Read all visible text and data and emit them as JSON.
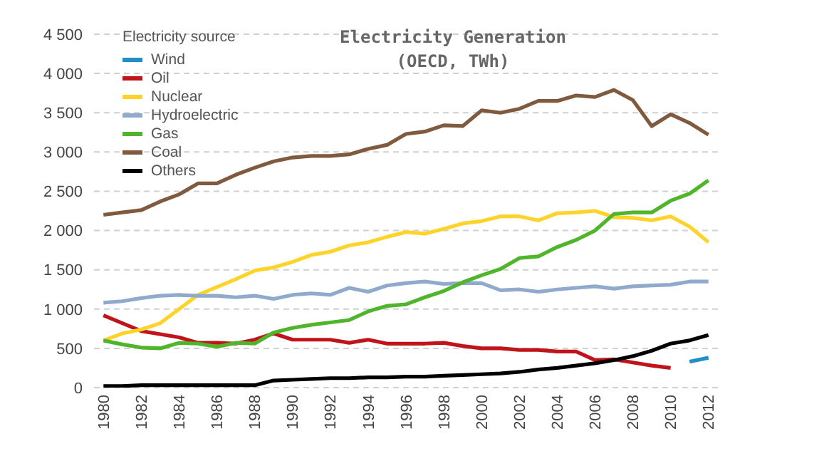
{
  "chart_data": {
    "type": "line",
    "title": "Electricity Generation",
    "subtitle": "(OECD, TWh)",
    "legend_title": "Electricity source",
    "legend": "top left",
    "grid": "y",
    "marker": "none",
    "line_style": "solid",
    "categories": [
      "1980",
      null,
      "1982",
      null,
      "1984",
      null,
      "1986",
      null,
      "1988",
      null,
      "1990",
      null,
      "1992",
      null,
      "1994",
      null,
      "1996",
      null,
      "1998",
      null,
      "2000",
      null,
      "2002",
      null,
      "2004",
      null,
      "2006",
      null,
      "2008",
      null,
      "2010",
      null,
      "2012"
    ],
    "ylim": [
      0,
      4500
    ],
    "yticks": [
      0,
      500,
      {
        "value": 1000,
        "label": "1 000"
      },
      {
        "value": 1500,
        "label": "1 500"
      },
      {
        "value": 2000,
        "label": "2 000"
      },
      {
        "value": 2500,
        "label": "2 500"
      },
      {
        "value": 3000,
        "label": "3 000"
      },
      {
        "value": 3500,
        "label": "3 500"
      },
      {
        "value": 4000,
        "label": "4 000"
      },
      {
        "value": 4500,
        "label": "4 500"
      }
    ],
    "series": [
      {
        "name": "Wind",
        "color": "#1f8fc8",
        "values": [
          null,
          null,
          null,
          null,
          null,
          null,
          null,
          null,
          null,
          null,
          null,
          null,
          null,
          null,
          null,
          null,
          null,
          null,
          null,
          null,
          null,
          null,
          null,
          null,
          null,
          null,
          null,
          null,
          null,
          null,
          null,
          330,
          380
        ]
      },
      {
        "name": "Oil",
        "color": "#c0141a",
        "values": [
          920,
          820,
          720,
          680,
          640,
          570,
          570,
          560,
          610,
          690,
          610,
          610,
          610,
          570,
          610,
          560,
          560,
          560,
          570,
          530,
          500,
          500,
          480,
          480,
          460,
          460,
          350,
          360,
          320,
          280,
          250,
          null,
          null
        ]
      },
      {
        "name": "Nuclear",
        "color": "#ffd42a",
        "values": [
          600,
          690,
          740,
          820,
          1000,
          1180,
          1280,
          1380,
          1490,
          1530,
          1600,
          1690,
          1730,
          1810,
          1850,
          1920,
          1980,
          1960,
          2020,
          2090,
          2120,
          2180,
          2180,
          2130,
          2220,
          2230,
          2250,
          2170,
          2160,
          2130,
          2180,
          2050,
          1850
        ]
      },
      {
        "name": "Hydroelectric",
        "color": "#8faacc",
        "values": [
          1080,
          1100,
          1140,
          1170,
          1180,
          1170,
          1170,
          1150,
          1170,
          1130,
          1180,
          1200,
          1180,
          1270,
          1220,
          1300,
          1330,
          1350,
          1320,
          1330,
          1330,
          1240,
          1250,
          1220,
          1250,
          1270,
          1290,
          1260,
          1290,
          1300,
          1310,
          1350,
          1350
        ]
      },
      {
        "name": "Gas",
        "color": "#4fb52a",
        "values": [
          600,
          550,
          510,
          500,
          570,
          560,
          520,
          570,
          560,
          700,
          760,
          800,
          830,
          860,
          970,
          1040,
          1060,
          1150,
          1230,
          1340,
          1430,
          1510,
          1650,
          1670,
          1790,
          1880,
          2000,
          2210,
          2230,
          2230,
          2380,
          2470,
          2640
        ]
      },
      {
        "name": "Coal",
        "color": "#7f5a3f",
        "values": [
          2200,
          2230,
          2260,
          2370,
          2460,
          2600,
          2600,
          2710,
          2800,
          2880,
          2930,
          2950,
          2950,
          2970,
          3040,
          3090,
          3230,
          3260,
          3340,
          3330,
          3530,
          3500,
          3550,
          3650,
          3650,
          3720,
          3700,
          3790,
          3660,
          3330,
          3480,
          3370,
          3220
        ]
      },
      {
        "name": "Others",
        "color": "#000000",
        "values": [
          20,
          20,
          30,
          30,
          30,
          30,
          30,
          30,
          30,
          90,
          100,
          110,
          120,
          120,
          130,
          130,
          140,
          140,
          150,
          160,
          170,
          180,
          200,
          230,
          250,
          280,
          310,
          350,
          400,
          470,
          560,
          600,
          670
        ]
      }
    ]
  }
}
